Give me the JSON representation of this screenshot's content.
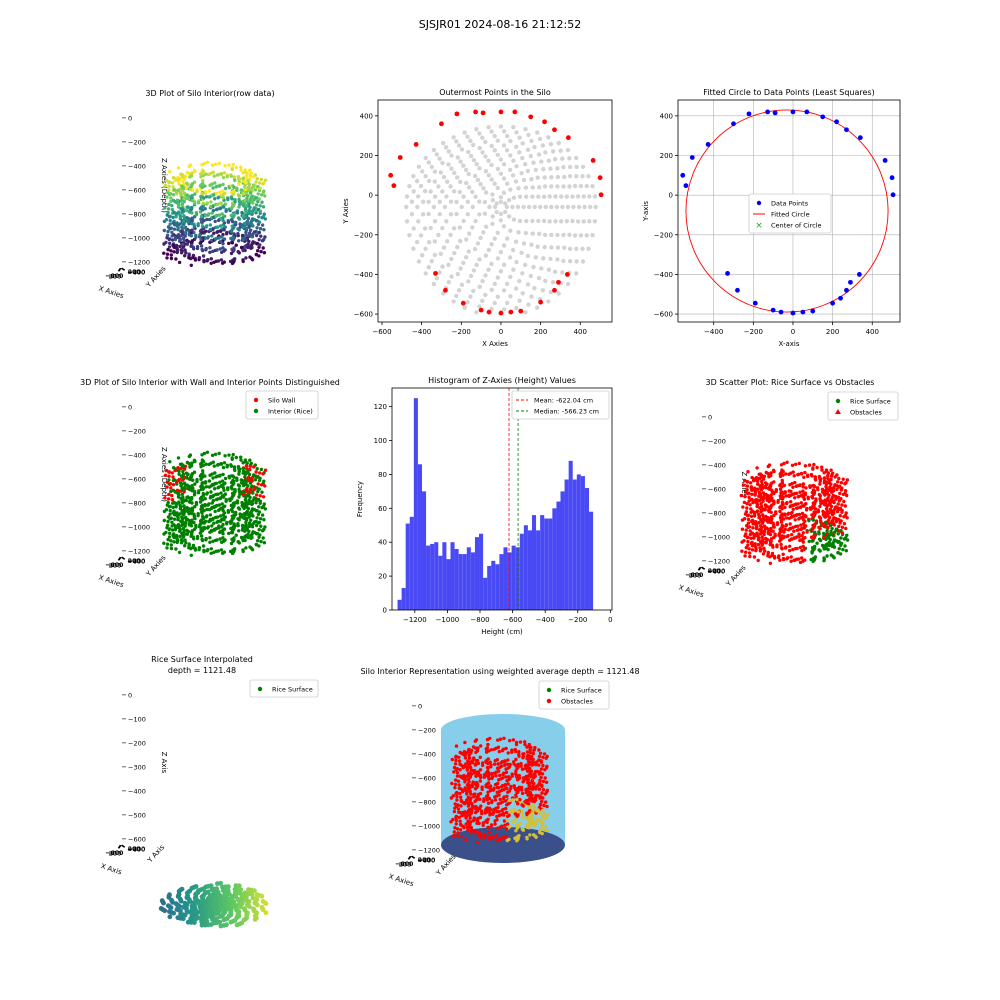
{
  "suptitle": "SJSJR01 2024-08-16 21:12:52",
  "colors": {
    "gray_points": "#d3d3d3",
    "outer_points": "#ff0000",
    "data_points": "#0000ff",
    "fitted_circle": "#ff0000",
    "histogram": "#4a4af5",
    "mean_line": "#ff0000",
    "median_line": "#008000",
    "wall": "#ff0000",
    "interior": "#008000",
    "rice_surface": "#008000",
    "obstacles": "#ff0000",
    "silo_body": "#87ceeb"
  },
  "chart_data": [
    {
      "id": "plot1",
      "type": "scatter3d",
      "title": "3D Plot of Silo Interior(row data)",
      "xlabel": "X Axies",
      "ylabel": "Y Axies",
      "zlabel": "Z Axies (Depth)",
      "xticks": [
        "−600",
        "−400",
        "−200",
        "0",
        "200",
        "400"
      ],
      "yticks": [
        "400",
        "200",
        "0",
        "−200",
        "−400",
        "−600"
      ],
      "zticks": [
        "0",
        "−200",
        "−400",
        "−600",
        "−800",
        "−1000",
        "−1200"
      ],
      "colormap": "viridis"
    },
    {
      "id": "plot2",
      "type": "scatter",
      "title": "Outermost Points in the Silo",
      "xlabel": "X Axies",
      "ylabel": "Y Axies",
      "xlim": [
        -620,
        560
      ],
      "ylim": [
        -640,
        480
      ],
      "xticks": [
        -600,
        -400,
        -200,
        0,
        200,
        400
      ],
      "yticks": [
        400,
        200,
        0,
        -200,
        -400,
        -600
      ],
      "outer_points": [
        [
          -556,
          100
        ],
        [
          -540,
          48
        ],
        [
          -508,
          190
        ],
        [
          -428,
          256
        ],
        [
          -300,
          360
        ],
        [
          -222,
          410
        ],
        [
          -128,
          420
        ],
        [
          -90,
          415
        ],
        [
          0,
          420
        ],
        [
          70,
          420
        ],
        [
          150,
          395
        ],
        [
          220,
          370
        ],
        [
          270,
          330
        ],
        [
          340,
          290
        ],
        [
          465,
          175
        ],
        [
          500,
          88
        ],
        [
          505,
          2
        ],
        [
          335,
          -400
        ],
        [
          290,
          -440
        ],
        [
          270,
          -480
        ],
        [
          200,
          -540
        ],
        [
          100,
          -585
        ],
        [
          50,
          -590
        ],
        [
          0,
          -595
        ],
        [
          -60,
          -590
        ],
        [
          -100,
          -580
        ],
        [
          -190,
          -545
        ],
        [
          -280,
          -480
        ],
        [
          -330,
          -395
        ]
      ]
    },
    {
      "id": "plot3",
      "type": "scatter",
      "title": "Fitted Circle to Data Points (Least Squares)",
      "xlabel": "X-axis",
      "ylabel": "Y-axis",
      "xlim": [
        -580,
        540
      ],
      "ylim": [
        -640,
        480
      ],
      "xticks": [
        -400,
        -200,
        0,
        200,
        400
      ],
      "yticks": [
        400,
        200,
        0,
        -200,
        -400,
        -600
      ],
      "grid": true,
      "legend": [
        "Data Points",
        "Fitted Circle",
        "Center of Circle"
      ],
      "legend_position": "center",
      "circle": {
        "cx": -30,
        "cy": -80,
        "r": 510
      },
      "points": [
        [
          -556,
          100
        ],
        [
          -540,
          48
        ],
        [
          -508,
          190
        ],
        [
          -428,
          256
        ],
        [
          -300,
          360
        ],
        [
          -222,
          410
        ],
        [
          -128,
          420
        ],
        [
          -90,
          415
        ],
        [
          0,
          420
        ],
        [
          70,
          420
        ],
        [
          150,
          395
        ],
        [
          220,
          370
        ],
        [
          270,
          330
        ],
        [
          340,
          290
        ],
        [
          465,
          175
        ],
        [
          500,
          88
        ],
        [
          505,
          2
        ],
        [
          335,
          -400
        ],
        [
          290,
          -440
        ],
        [
          270,
          -480
        ],
        [
          240,
          -520
        ],
        [
          200,
          -545
        ],
        [
          100,
          -585
        ],
        [
          50,
          -590
        ],
        [
          0,
          -595
        ],
        [
          -60,
          -590
        ],
        [
          -100,
          -580
        ],
        [
          -190,
          -545
        ],
        [
          -280,
          -480
        ],
        [
          -330,
          -395
        ]
      ]
    },
    {
      "id": "plot4",
      "type": "scatter3d",
      "title": "3D Plot of Silo Interior with Wall and Interior Points Distinguished",
      "xlabel": "X Axies",
      "ylabel": "Y Axies",
      "zlabel": "Z Axies (Depth)",
      "xticks": [
        "−600",
        "−400",
        "−200",
        "0",
        "200",
        "400"
      ],
      "yticks": [
        "400",
        "200",
        "0",
        "−200",
        "−400",
        "−600"
      ],
      "zticks": [
        "0",
        "−200",
        "−400",
        "−600",
        "−800",
        "−1000",
        "−1200"
      ],
      "legend": [
        "Silo Wall",
        "Interior (Rice)"
      ],
      "legend_position": "top-right"
    },
    {
      "id": "plot5",
      "type": "histogram",
      "title": "Histogram of Z-Axies (Height) Values",
      "xlabel": "Height (cm)",
      "ylabel": "Frequency",
      "xlim": [
        -1340,
        10
      ],
      "ylim": [
        0,
        131
      ],
      "xticks": [
        -1200,
        -1000,
        -800,
        -600,
        -400,
        -200,
        0
      ],
      "yticks": [
        0,
        20,
        40,
        60,
        80,
        100,
        120
      ],
      "legend": [
        "Mean: -622.04 cm",
        "Median: -566.23 cm"
      ],
      "legend_position": "top-right",
      "mean": -622.04,
      "median": -566.23,
      "bin_start": -1306,
      "bin_width": 25,
      "counts": [
        6,
        13,
        51,
        55,
        125,
        86,
        70,
        38,
        39,
        40,
        32,
        40,
        30,
        40,
        36,
        33,
        33,
        37,
        34,
        43,
        45,
        19,
        26,
        29,
        27,
        33,
        37,
        34,
        38,
        37,
        45,
        50,
        47,
        56,
        47,
        56,
        54,
        54,
        60,
        64,
        70,
        77,
        88,
        77,
        80,
        79,
        72,
        58
      ]
    },
    {
      "id": "plot6",
      "type": "scatter3d",
      "title": "3D Scatter Plot: Rice Surface vs Obstacles",
      "xlabel": "X Axies",
      "ylabel": "Y Axies",
      "zlabel": "Z Axies",
      "xticks": [
        "−600",
        "−400",
        "−200",
        "0",
        "200",
        "400"
      ],
      "yticks": [
        "400",
        "200",
        "0",
        "−200",
        "−400",
        "−600"
      ],
      "zticks": [
        "0",
        "−200",
        "−400",
        "−600",
        "−800",
        "−1000",
        "−1200"
      ],
      "legend": [
        "Rice Surface",
        "Obstacles"
      ],
      "legend_position": "top-right"
    },
    {
      "id": "plot7",
      "type": "surface3d",
      "title": "Rice Surface Interpolated",
      "subtitle": "depth = 1121.48",
      "xlabel": "X Axis",
      "ylabel": "Y Axis",
      "zlabel": "Z Axis",
      "xticks": [
        "−600",
        "−400",
        "−200",
        "0",
        "200",
        "400"
      ],
      "yticks": [
        "400",
        "200",
        "0",
        "−200",
        "−400",
        "−600"
      ],
      "zticks": [
        "0",
        "−100",
        "−200",
        "−300",
        "−400",
        "−500",
        "−600"
      ],
      "legend": [
        "Rice Surface"
      ],
      "legend_position": "top-right"
    },
    {
      "id": "plot8",
      "type": "scatter3d",
      "title": "Silo Interior Representation using weighted average depth = 1121.48",
      "xlabel": "X Axies",
      "ylabel": "Y Axies",
      "zlabel": "Z Axies",
      "xticks": [
        "−600",
        "−400",
        "−200",
        "0",
        "200",
        "400"
      ],
      "yticks": [
        "400",
        "200",
        "0",
        "−200",
        "−400",
        "−600"
      ],
      "zticks": [
        "0",
        "−200",
        "−400",
        "−600",
        "−800",
        "−1000",
        "−1200"
      ],
      "legend": [
        "Rice Surface",
        "Obstacles"
      ],
      "legend_position": "top-right"
    }
  ]
}
